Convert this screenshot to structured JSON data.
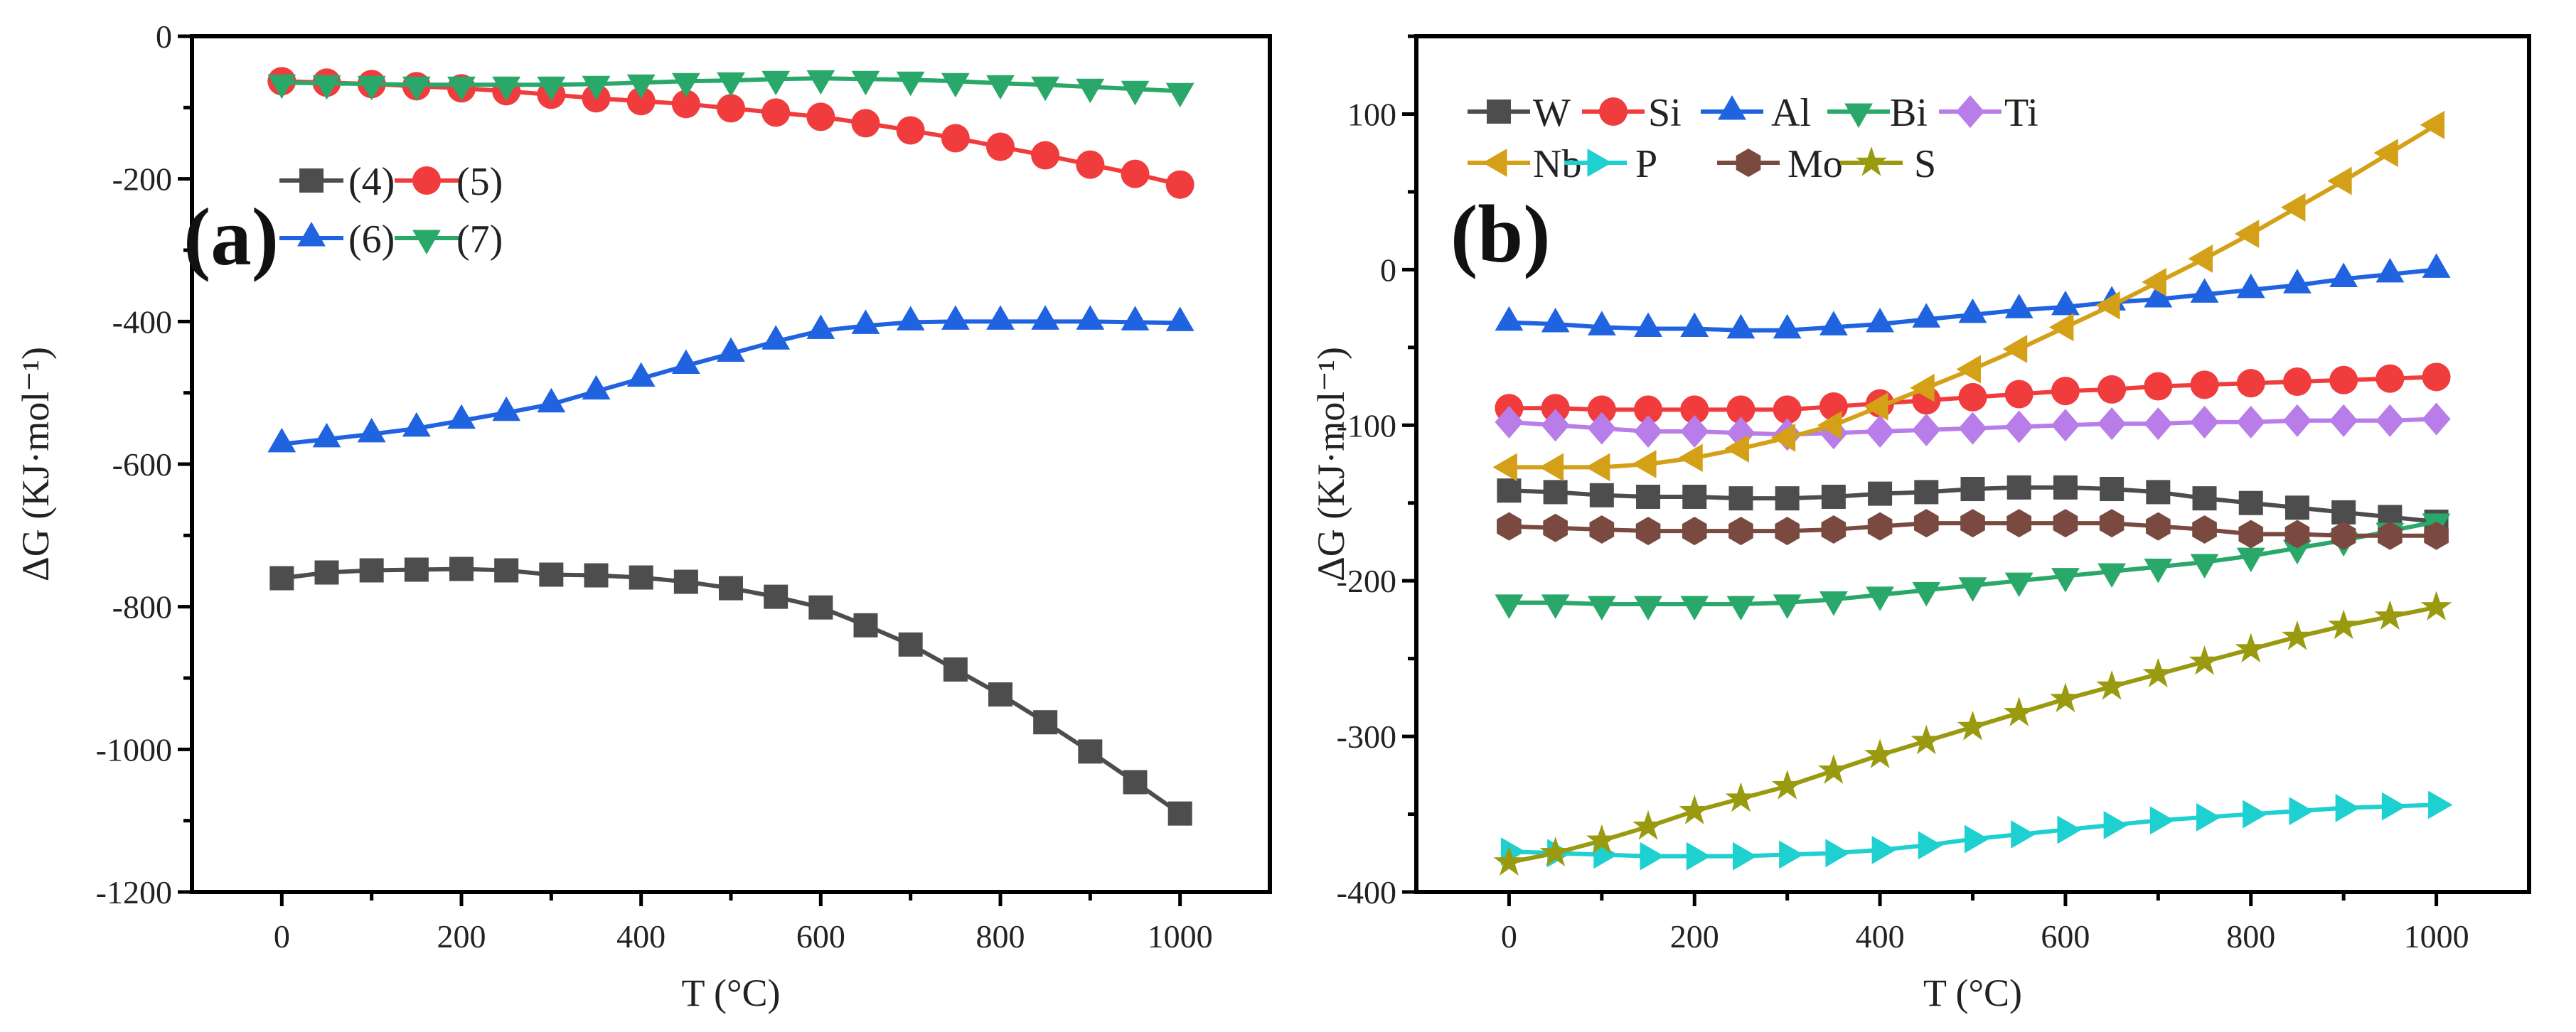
{
  "chart_data": [
    {
      "type": "line",
      "panel_label": "(a)",
      "xlabel": "T (°C)",
      "ylabel": "ΔG (KJ·mol⁻¹)",
      "xlim": [
        -100,
        1100
      ],
      "ylim": [
        -1200,
        0
      ],
      "xticks": [
        0,
        200,
        400,
        600,
        800,
        1000
      ],
      "yticks": [
        0,
        -200,
        -400,
        -600,
        -800,
        -1000,
        -1200
      ],
      "x": [
        0,
        50,
        100,
        150,
        200,
        250,
        300,
        350,
        400,
        450,
        500,
        550,
        600,
        650,
        700,
        750,
        800,
        850,
        900,
        950,
        1000
      ],
      "legend_position": "upper-left",
      "series": [
        {
          "name": "(4)",
          "color": "#4d4d4d",
          "marker": "square",
          "values": [
            -760,
            -752,
            -749,
            -748,
            -747,
            -749,
            -755,
            -756,
            -759,
            -765,
            -774,
            -786,
            -801,
            -826,
            -853,
            -888,
            -923,
            -962,
            -1003,
            -1046,
            -1090
          ]
        },
        {
          "name": "(5)",
          "color": "#f03c3c",
          "marker": "circle",
          "values": [
            -63,
            -65,
            -67,
            -70,
            -73,
            -77,
            -82,
            -87,
            -91,
            -95,
            -101,
            -107,
            -113,
            -122,
            -132,
            -143,
            -155,
            -167,
            -180,
            -193,
            -208
          ]
        },
        {
          "name": "(6)",
          "color": "#1f63e0",
          "marker": "triangle-up",
          "values": [
            -572,
            -565,
            -558,
            -550,
            -539,
            -528,
            -516,
            -498,
            -480,
            -462,
            -445,
            -428,
            -413,
            -406,
            -401,
            -400,
            -400,
            -400,
            -400,
            -401,
            -402
          ]
        },
        {
          "name": "(7)",
          "color": "#2aa86a",
          "marker": "triangle-down",
          "values": [
            -65,
            -66,
            -67,
            -68,
            -68,
            -68,
            -68,
            -67,
            -65,
            -63,
            -62,
            -60,
            -59,
            -60,
            -61,
            -63,
            -66,
            -68,
            -71,
            -74,
            -77
          ]
        }
      ]
    },
    {
      "type": "line",
      "panel_label": "(b)",
      "xlabel": "T (°C)",
      "ylabel": "ΔG (KJ·mol⁻¹)",
      "xlim": [
        -100,
        1100
      ],
      "ylim": [
        -400,
        150
      ],
      "xticks": [
        0,
        200,
        400,
        600,
        800,
        1000
      ],
      "yticks": [
        100,
        0,
        -100,
        -200,
        -300,
        -400
      ],
      "x": [
        0,
        50,
        100,
        150,
        200,
        250,
        300,
        350,
        400,
        450,
        500,
        550,
        600,
        650,
        700,
        750,
        800,
        850,
        900,
        950,
        1000
      ],
      "legend_position": "upper-left",
      "series": [
        {
          "name": "W",
          "color": "#4d4d4d",
          "marker": "square",
          "values": [
            -142,
            -143,
            -145,
            -146,
            -146,
            -147,
            -147,
            -146,
            -144,
            -143,
            -141,
            -140,
            -140,
            -141,
            -143,
            -147,
            -150,
            -153,
            -156,
            -159,
            -162
          ]
        },
        {
          "name": "Si",
          "color": "#f03c3c",
          "marker": "circle",
          "values": [
            -89,
            -89,
            -90,
            -90,
            -90,
            -90,
            -90,
            -88,
            -86,
            -84,
            -82,
            -80,
            -78,
            -77,
            -75,
            -74,
            -73,
            -72,
            -71,
            -70,
            -69
          ]
        },
        {
          "name": "Al",
          "color": "#1f63e0",
          "marker": "triangle-up",
          "values": [
            -34,
            -35,
            -37,
            -38,
            -38,
            -39,
            -39,
            -37,
            -35,
            -32,
            -29,
            -26,
            -24,
            -21,
            -19,
            -16,
            -13,
            -10,
            -6,
            -3,
            0
          ]
        },
        {
          "name": "Bi",
          "color": "#2aa86a",
          "marker": "triangle-down",
          "values": [
            -214,
            -214,
            -215,
            -215,
            -215,
            -215,
            -214,
            -212,
            -209,
            -206,
            -203,
            -200,
            -197,
            -194,
            -191,
            -188,
            -184,
            -179,
            -174,
            -168,
            -162
          ]
        },
        {
          "name": "Ti",
          "color": "#b87de8",
          "marker": "diamond",
          "values": [
            -98,
            -100,
            -102,
            -104,
            -104,
            -105,
            -106,
            -105,
            -104,
            -103,
            -102,
            -101,
            -100,
            -99,
            -99,
            -98,
            -98,
            -97,
            -97,
            -97,
            -96
          ]
        },
        {
          "name": "Nb",
          "color": "#d4a017",
          "marker": "triangle-left",
          "values": [
            -127,
            -127,
            -127,
            -125,
            -121,
            -115,
            -108,
            -100,
            -88,
            -76,
            -64,
            -51,
            -37,
            -23,
            -8,
            7,
            23,
            40,
            57,
            75,
            93
          ]
        },
        {
          "name": "P",
          "color": "#1fd0d0",
          "marker": "triangle-right",
          "values": [
            -374,
            -375,
            -376,
            -377,
            -377,
            -377,
            -376,
            -375,
            -373,
            -370,
            -366,
            -363,
            -360,
            -357,
            -354,
            -352,
            -350,
            -348,
            -346,
            -345,
            -344
          ]
        },
        {
          "name": "Mo",
          "color": "#7a4a40",
          "marker": "hexagon",
          "values": [
            -165,
            -166,
            -167,
            -168,
            -168,
            -168,
            -168,
            -167,
            -165,
            -163,
            -163,
            -163,
            -163,
            -163,
            -165,
            -167,
            -170,
            -170,
            -171,
            -171,
            -171
          ]
        },
        {
          "name": "S",
          "color": "#9a9a10",
          "marker": "star",
          "values": [
            -381,
            -375,
            -367,
            -358,
            -348,
            -340,
            -332,
            -322,
            -312,
            -303,
            -294,
            -285,
            -276,
            -268,
            -260,
            -252,
            -244,
            -236,
            -229,
            -223,
            -217
          ]
        }
      ]
    }
  ]
}
